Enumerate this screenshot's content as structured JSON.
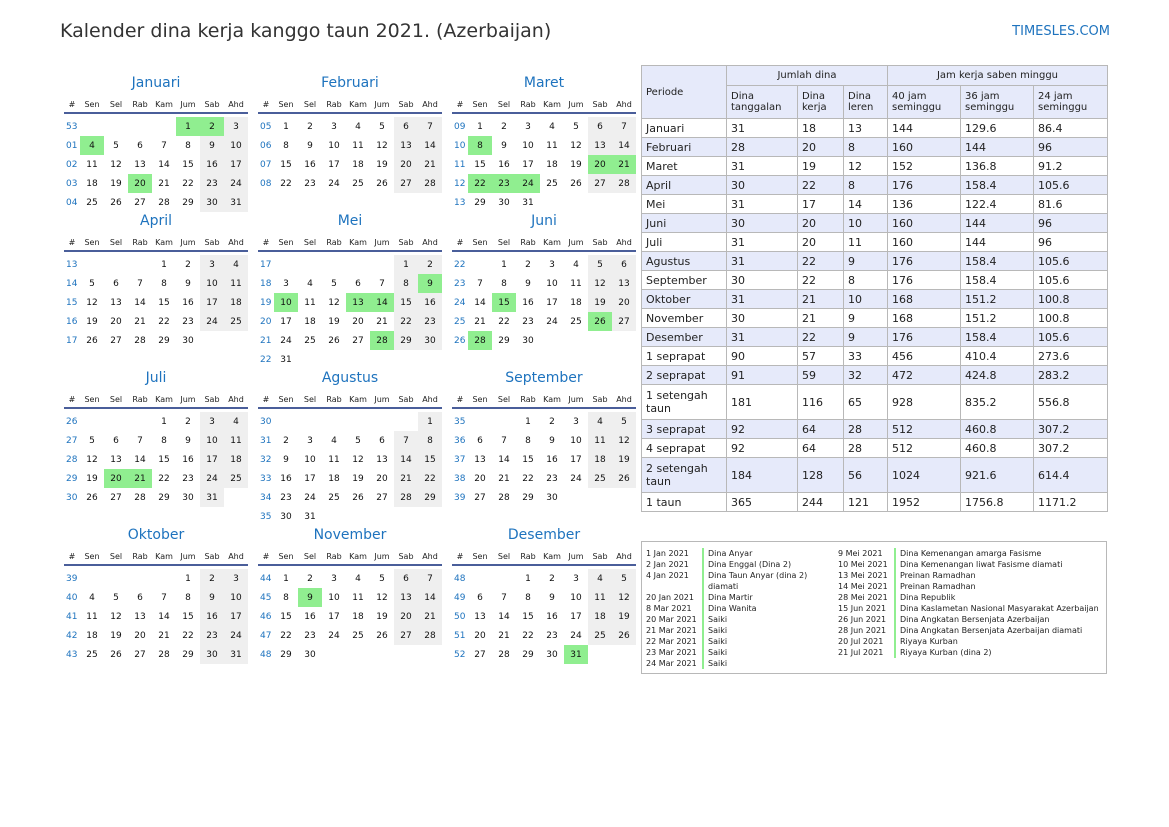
{
  "title": "Kalender dina kerja kanggo taun 2021. (Azerbaijan)",
  "site": "TIMESLES.COM",
  "weekday_headers": [
    "#",
    "Sen",
    "Sel",
    "Rab",
    "Kam",
    "Jum",
    "Sab",
    "Ahd"
  ],
  "months": [
    {
      "name": "Januari",
      "weeks": [
        {
          "wk": "53",
          "days": [
            "",
            "",
            "",
            "",
            "1",
            "2",
            "3"
          ],
          "hol": [
            4,
            5
          ]
        },
        {
          "wk": "01",
          "days": [
            "4",
            "5",
            "6",
            "7",
            "8",
            "9",
            "10"
          ],
          "hol": [
            0
          ]
        },
        {
          "wk": "02",
          "days": [
            "11",
            "12",
            "13",
            "14",
            "15",
            "16",
            "17"
          ],
          "hol": []
        },
        {
          "wk": "03",
          "days": [
            "18",
            "19",
            "20",
            "21",
            "22",
            "23",
            "24"
          ],
          "hol": [
            2
          ]
        },
        {
          "wk": "04",
          "days": [
            "25",
            "26",
            "27",
            "28",
            "29",
            "30",
            "31"
          ],
          "hol": []
        }
      ]
    },
    {
      "name": "Februari",
      "weeks": [
        {
          "wk": "05",
          "days": [
            "1",
            "2",
            "3",
            "4",
            "5",
            "6",
            "7"
          ],
          "hol": []
        },
        {
          "wk": "06",
          "days": [
            "8",
            "9",
            "10",
            "11",
            "12",
            "13",
            "14"
          ],
          "hol": []
        },
        {
          "wk": "07",
          "days": [
            "15",
            "16",
            "17",
            "18",
            "19",
            "20",
            "21"
          ],
          "hol": []
        },
        {
          "wk": "08",
          "days": [
            "22",
            "23",
            "24",
            "25",
            "26",
            "27",
            "28"
          ],
          "hol": []
        }
      ]
    },
    {
      "name": "Maret",
      "weeks": [
        {
          "wk": "09",
          "days": [
            "1",
            "2",
            "3",
            "4",
            "5",
            "6",
            "7"
          ],
          "hol": []
        },
        {
          "wk": "10",
          "days": [
            "8",
            "9",
            "10",
            "11",
            "12",
            "13",
            "14"
          ],
          "hol": [
            0
          ]
        },
        {
          "wk": "11",
          "days": [
            "15",
            "16",
            "17",
            "18",
            "19",
            "20",
            "21"
          ],
          "hol": [
            5,
            6
          ]
        },
        {
          "wk": "12",
          "days": [
            "22",
            "23",
            "24",
            "25",
            "26",
            "27",
            "28"
          ],
          "hol": [
            0,
            1,
            2
          ]
        },
        {
          "wk": "13",
          "days": [
            "29",
            "30",
            "31",
            "",
            "",
            "",
            ""
          ],
          "hol": []
        }
      ]
    },
    {
      "name": "April",
      "weeks": [
        {
          "wk": "13",
          "days": [
            "",
            "",
            "",
            "1",
            "2",
            "3",
            "4"
          ],
          "hol": []
        },
        {
          "wk": "14",
          "days": [
            "5",
            "6",
            "7",
            "8",
            "9",
            "10",
            "11"
          ],
          "hol": []
        },
        {
          "wk": "15",
          "days": [
            "12",
            "13",
            "14",
            "15",
            "16",
            "17",
            "18"
          ],
          "hol": []
        },
        {
          "wk": "16",
          "days": [
            "19",
            "20",
            "21",
            "22",
            "23",
            "24",
            "25"
          ],
          "hol": []
        },
        {
          "wk": "17",
          "days": [
            "26",
            "27",
            "28",
            "29",
            "30",
            "",
            ""
          ],
          "hol": []
        }
      ]
    },
    {
      "name": "Mei",
      "weeks": [
        {
          "wk": "17",
          "days": [
            "",
            "",
            "",
            "",
            "",
            "1",
            "2"
          ],
          "hol": []
        },
        {
          "wk": "18",
          "days": [
            "3",
            "4",
            "5",
            "6",
            "7",
            "8",
            "9"
          ],
          "hol": [
            6
          ]
        },
        {
          "wk": "19",
          "days": [
            "10",
            "11",
            "12",
            "13",
            "14",
            "15",
            "16"
          ],
          "hol": [
            0,
            3,
            4
          ]
        },
        {
          "wk": "20",
          "days": [
            "17",
            "18",
            "19",
            "20",
            "21",
            "22",
            "23"
          ],
          "hol": []
        },
        {
          "wk": "21",
          "days": [
            "24",
            "25",
            "26",
            "27",
            "28",
            "29",
            "30"
          ],
          "hol": [
            4
          ]
        },
        {
          "wk": "22",
          "days": [
            "31",
            "",
            "",
            "",
            "",
            "",
            ""
          ],
          "hol": []
        }
      ]
    },
    {
      "name": "Juni",
      "weeks": [
        {
          "wk": "22",
          "days": [
            "",
            "1",
            "2",
            "3",
            "4",
            "5",
            "6"
          ],
          "hol": []
        },
        {
          "wk": "23",
          "days": [
            "7",
            "8",
            "9",
            "10",
            "11",
            "12",
            "13"
          ],
          "hol": []
        },
        {
          "wk": "24",
          "days": [
            "14",
            "15",
            "16",
            "17",
            "18",
            "19",
            "20"
          ],
          "hol": [
            1
          ]
        },
        {
          "wk": "25",
          "days": [
            "21",
            "22",
            "23",
            "24",
            "25",
            "26",
            "27"
          ],
          "hol": [
            5
          ]
        },
        {
          "wk": "26",
          "days": [
            "28",
            "29",
            "30",
            "",
            "",
            "",
            ""
          ],
          "hol": [
            0
          ]
        }
      ]
    },
    {
      "name": "Juli",
      "weeks": [
        {
          "wk": "26",
          "days": [
            "",
            "",
            "",
            "1",
            "2",
            "3",
            "4"
          ],
          "hol": []
        },
        {
          "wk": "27",
          "days": [
            "5",
            "6",
            "7",
            "8",
            "9",
            "10",
            "11"
          ],
          "hol": []
        },
        {
          "wk": "28",
          "days": [
            "12",
            "13",
            "14",
            "15",
            "16",
            "17",
            "18"
          ],
          "hol": []
        },
        {
          "wk": "29",
          "days": [
            "19",
            "20",
            "21",
            "22",
            "23",
            "24",
            "25"
          ],
          "hol": [
            1,
            2
          ]
        },
        {
          "wk": "30",
          "days": [
            "26",
            "27",
            "28",
            "29",
            "30",
            "31",
            ""
          ],
          "hol": []
        }
      ]
    },
    {
      "name": "Agustus",
      "weeks": [
        {
          "wk": "30",
          "days": [
            "",
            "",
            "",
            "",
            "",
            "",
            "1"
          ],
          "hol": []
        },
        {
          "wk": "31",
          "days": [
            "2",
            "3",
            "4",
            "5",
            "6",
            "7",
            "8"
          ],
          "hol": []
        },
        {
          "wk": "32",
          "days": [
            "9",
            "10",
            "11",
            "12",
            "13",
            "14",
            "15"
          ],
          "hol": []
        },
        {
          "wk": "33",
          "days": [
            "16",
            "17",
            "18",
            "19",
            "20",
            "21",
            "22"
          ],
          "hol": []
        },
        {
          "wk": "34",
          "days": [
            "23",
            "24",
            "25",
            "26",
            "27",
            "28",
            "29"
          ],
          "hol": []
        },
        {
          "wk": "35",
          "days": [
            "30",
            "31",
            "",
            "",
            "",
            "",
            ""
          ],
          "hol": []
        }
      ]
    },
    {
      "name": "September",
      "weeks": [
        {
          "wk": "35",
          "days": [
            "",
            "",
            "1",
            "2",
            "3",
            "4",
            "5"
          ],
          "hol": []
        },
        {
          "wk": "36",
          "days": [
            "6",
            "7",
            "8",
            "9",
            "10",
            "11",
            "12"
          ],
          "hol": []
        },
        {
          "wk": "37",
          "days": [
            "13",
            "14",
            "15",
            "16",
            "17",
            "18",
            "19"
          ],
          "hol": []
        },
        {
          "wk": "38",
          "days": [
            "20",
            "21",
            "22",
            "23",
            "24",
            "25",
            "26"
          ],
          "hol": []
        },
        {
          "wk": "39",
          "days": [
            "27",
            "28",
            "29",
            "30",
            "",
            "",
            ""
          ],
          "hol": []
        }
      ]
    },
    {
      "name": "Oktober",
      "weeks": [
        {
          "wk": "39",
          "days": [
            "",
            "",
            "",
            "",
            "1",
            "2",
            "3"
          ],
          "hol": []
        },
        {
          "wk": "40",
          "days": [
            "4",
            "5",
            "6",
            "7",
            "8",
            "9",
            "10"
          ],
          "hol": []
        },
        {
          "wk": "41",
          "days": [
            "11",
            "12",
            "13",
            "14",
            "15",
            "16",
            "17"
          ],
          "hol": []
        },
        {
          "wk": "42",
          "days": [
            "18",
            "19",
            "20",
            "21",
            "22",
            "23",
            "24"
          ],
          "hol": []
        },
        {
          "wk": "43",
          "days": [
            "25",
            "26",
            "27",
            "28",
            "29",
            "30",
            "31"
          ],
          "hol": []
        }
      ]
    },
    {
      "name": "November",
      "weeks": [
        {
          "wk": "44",
          "days": [
            "1",
            "2",
            "3",
            "4",
            "5",
            "6",
            "7"
          ],
          "hol": []
        },
        {
          "wk": "45",
          "days": [
            "8",
            "9",
            "10",
            "11",
            "12",
            "13",
            "14"
          ],
          "hol": [
            1
          ]
        },
        {
          "wk": "46",
          "days": [
            "15",
            "16",
            "17",
            "18",
            "19",
            "20",
            "21"
          ],
          "hol": []
        },
        {
          "wk": "47",
          "days": [
            "22",
            "23",
            "24",
            "25",
            "26",
            "27",
            "28"
          ],
          "hol": []
        },
        {
          "wk": "48",
          "days": [
            "29",
            "30",
            "",
            "",
            "",
            "",
            ""
          ],
          "hol": []
        }
      ]
    },
    {
      "name": "Desember",
      "weeks": [
        {
          "wk": "48",
          "days": [
            "",
            "",
            "1",
            "2",
            "3",
            "4",
            "5"
          ],
          "hol": []
        },
        {
          "wk": "49",
          "days": [
            "6",
            "7",
            "8",
            "9",
            "10",
            "11",
            "12"
          ],
          "hol": []
        },
        {
          "wk": "50",
          "days": [
            "13",
            "14",
            "15",
            "16",
            "17",
            "18",
            "19"
          ],
          "hol": []
        },
        {
          "wk": "51",
          "days": [
            "20",
            "21",
            "22",
            "23",
            "24",
            "25",
            "26"
          ],
          "hol": []
        },
        {
          "wk": "52",
          "days": [
            "27",
            "28",
            "29",
            "30",
            "31",
            "",
            ""
          ],
          "hol": [
            4
          ]
        }
      ]
    }
  ],
  "stats": {
    "periode_label": "Periode",
    "jumlah_dina": "Jumlah dina",
    "jam_kerja": "Jam kerja saben minggu",
    "cols": [
      "Dina tanggalan",
      "Dina kerja",
      "Dina leren",
      "40 jam seminggu",
      "36 jam seminggu",
      "24 jam seminggu"
    ],
    "rows": [
      [
        "Januari",
        "31",
        "18",
        "13",
        "144",
        "129.6",
        "86.4"
      ],
      [
        "Februari",
        "28",
        "20",
        "8",
        "160",
        "144",
        "96"
      ],
      [
        "Maret",
        "31",
        "19",
        "12",
        "152",
        "136.8",
        "91.2"
      ],
      [
        "April",
        "30",
        "22",
        "8",
        "176",
        "158.4",
        "105.6"
      ],
      [
        "Mei",
        "31",
        "17",
        "14",
        "136",
        "122.4",
        "81.6"
      ],
      [
        "Juni",
        "30",
        "20",
        "10",
        "160",
        "144",
        "96"
      ],
      [
        "Juli",
        "31",
        "20",
        "11",
        "160",
        "144",
        "96"
      ],
      [
        "Agustus",
        "31",
        "22",
        "9",
        "176",
        "158.4",
        "105.6"
      ],
      [
        "September",
        "30",
        "22",
        "8",
        "176",
        "158.4",
        "105.6"
      ],
      [
        "Oktober",
        "31",
        "21",
        "10",
        "168",
        "151.2",
        "100.8"
      ],
      [
        "November",
        "30",
        "21",
        "9",
        "168",
        "151.2",
        "100.8"
      ],
      [
        "Desember",
        "31",
        "22",
        "9",
        "176",
        "158.4",
        "105.6"
      ],
      [
        "1 seprapat",
        "90",
        "57",
        "33",
        "456",
        "410.4",
        "273.6"
      ],
      [
        "2 seprapat",
        "91",
        "59",
        "32",
        "472",
        "424.8",
        "283.2"
      ],
      [
        "1 setengah taun",
        "181",
        "116",
        "65",
        "928",
        "835.2",
        "556.8"
      ],
      [
        "3 seprapat",
        "92",
        "64",
        "28",
        "512",
        "460.8",
        "307.2"
      ],
      [
        "4 seprapat",
        "92",
        "64",
        "28",
        "512",
        "460.8",
        "307.2"
      ],
      [
        "2 setengah taun",
        "184",
        "128",
        "56",
        "1024",
        "921.6",
        "614.4"
      ],
      [
        "1 taun",
        "365",
        "244",
        "121",
        "1952",
        "1756.8",
        "1171.2"
      ]
    ]
  },
  "holidays_left": [
    [
      "1 Jan 2021",
      "Dina Anyar"
    ],
    [
      "2 Jan 2021",
      "Dina Enggal (Dina 2)"
    ],
    [
      "4 Jan 2021",
      "Dina Taun Anyar (dina 2)"
    ],
    [
      "",
      "diamati"
    ],
    [
      "20 Jan 2021",
      "Dina Martir"
    ],
    [
      "8 Mar 2021",
      "Dina Wanita"
    ],
    [
      "20 Mar 2021",
      "Saiki"
    ],
    [
      "21 Mar 2021",
      "Saiki"
    ],
    [
      "22 Mar 2021",
      "Saiki"
    ],
    [
      "23 Mar 2021",
      "Saiki"
    ],
    [
      "24 Mar 2021",
      "Saiki"
    ]
  ],
  "holidays_right": [
    [
      "9 Mei 2021",
      "Dina Kemenangan amarga Fasisme"
    ],
    [
      "10 Mei 2021",
      "Dina Kemenangan liwat Fasisme diamati"
    ],
    [
      "13 Mei 2021",
      "Preinan Ramadhan"
    ],
    [
      "14 Mei 2021",
      "Preinan Ramadhan"
    ],
    [
      "28 Mei 2021",
      "Dina Republik"
    ],
    [
      "15 Jun 2021",
      "Dina Kaslametan Nasional Masyarakat Azerbaijan"
    ],
    [
      "26 Jun 2021",
      "Dina Angkatan Bersenjata Azerbaijan"
    ],
    [
      "28 Jun 2021",
      "Dina Angkatan Bersenjata Azerbaijan diamati"
    ],
    [
      "20 Jul 2021",
      "Riyaya Kurban"
    ],
    [
      "21 Jul 2021",
      "Riyaya Kurban (dina 2)"
    ]
  ]
}
